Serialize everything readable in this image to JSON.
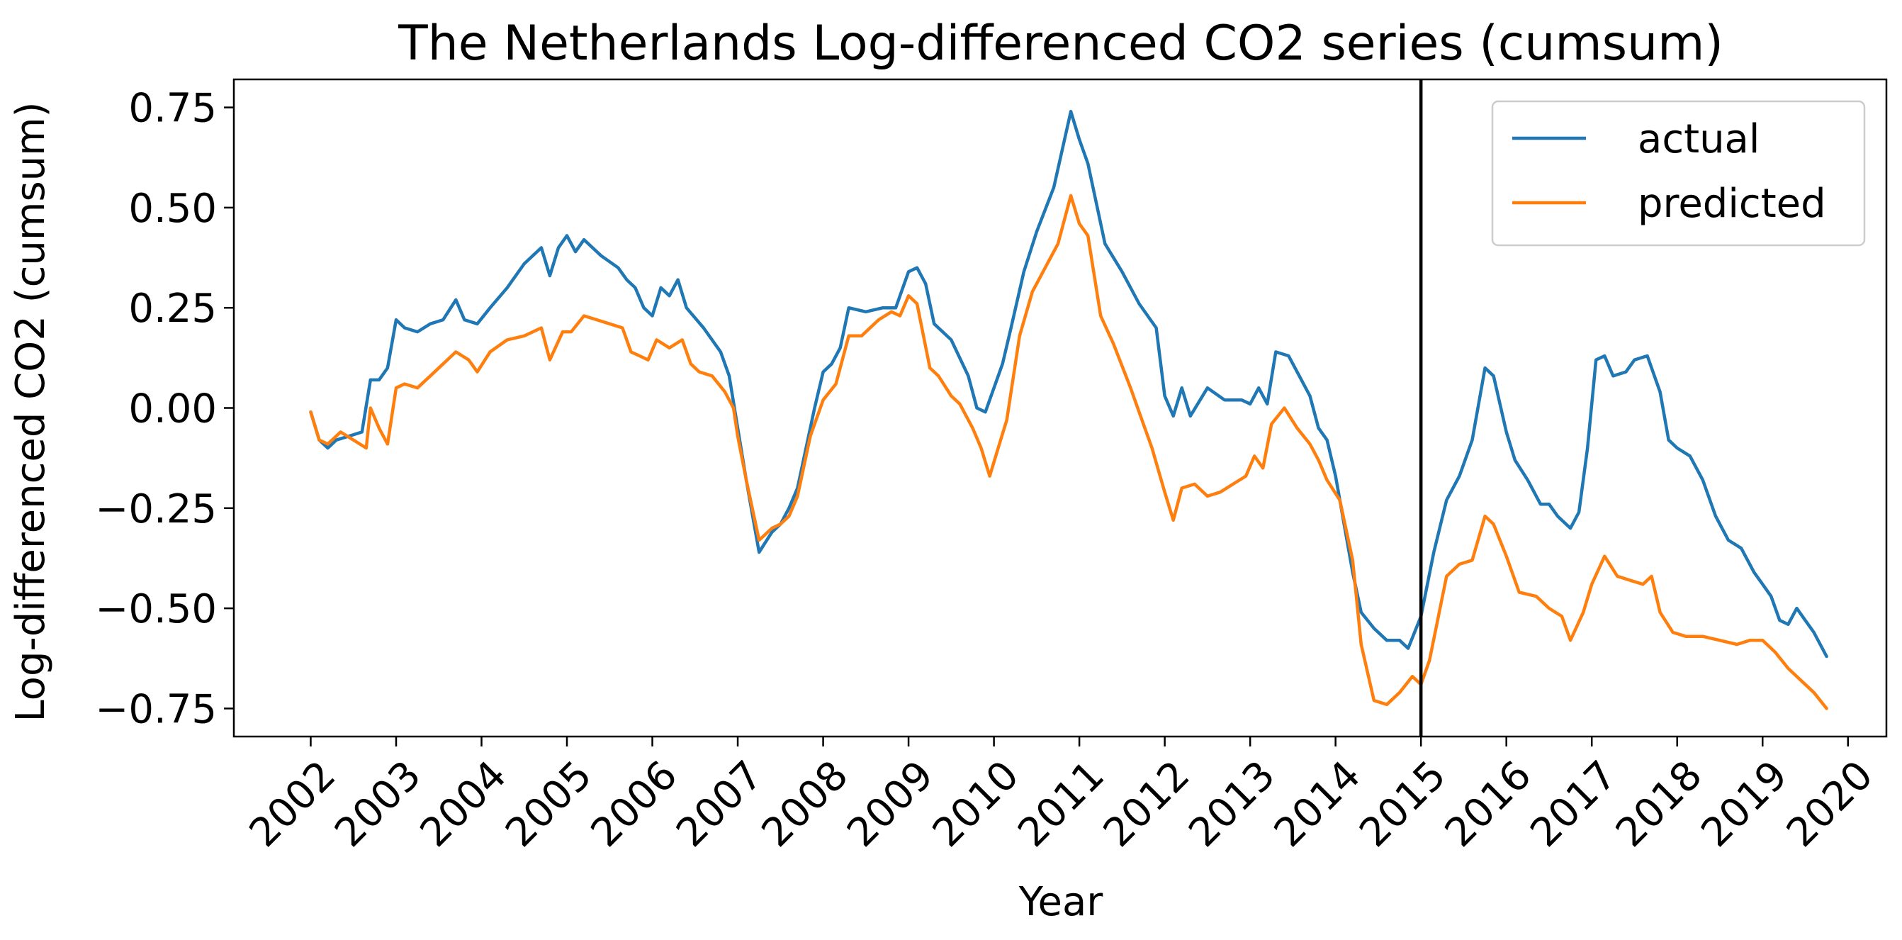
{
  "chart_data": {
    "type": "line",
    "title": "The Netherlands Log-differenced CO2 series (cumsum)",
    "xlabel": "Year",
    "ylabel": "Log-differenced CO2 (cumsum)",
    "xlim": [
      2001.1,
      2020.45
    ],
    "ylim": [
      -0.82,
      0.82
    ],
    "xticks": [
      2002,
      2003,
      2004,
      2005,
      2006,
      2007,
      2008,
      2009,
      2010,
      2011,
      2012,
      2013,
      2014,
      2015,
      2016,
      2017,
      2018,
      2019,
      2020
    ],
    "xtick_labels": [
      "2002",
      "2003",
      "2004",
      "2005",
      "2006",
      "2007",
      "2008",
      "2009",
      "2010",
      "2011",
      "2012",
      "2013",
      "2014",
      "2015",
      "2016",
      "2017",
      "2018",
      "2019",
      "2020"
    ],
    "yticks": [
      -0.75,
      -0.5,
      -0.25,
      0.0,
      0.25,
      0.5,
      0.75
    ],
    "ytick_labels": [
      "−0.75",
      "−0.50",
      "−0.25",
      "0.00",
      "0.25",
      "0.50",
      "0.75"
    ],
    "vline_x": 2015.0,
    "grid": false,
    "legend_position": "top-right",
    "series": [
      {
        "name": "actual",
        "color": "#1f77b4",
        "x": [
          2002.0,
          2002.1,
          2002.2,
          2002.3,
          2002.45,
          2002.6,
          2002.7,
          2002.8,
          2002.9,
          2003.0,
          2003.1,
          2003.25,
          2003.4,
          2003.55,
          2003.7,
          2003.8,
          2003.95,
          2004.1,
          2004.3,
          2004.5,
          2004.7,
          2004.8,
          2004.9,
          2005.0,
          2005.1,
          2005.2,
          2005.4,
          2005.6,
          2005.7,
          2005.8,
          2005.9,
          2006.0,
          2006.1,
          2006.2,
          2006.3,
          2006.4,
          2006.6,
          2006.8,
          2006.9,
          2007.0,
          2007.1,
          2007.25,
          2007.4,
          2007.5,
          2007.6,
          2007.7,
          2007.9,
          2008.0,
          2008.1,
          2008.2,
          2008.3,
          2008.5,
          2008.7,
          2008.85,
          2009.0,
          2009.1,
          2009.2,
          2009.3,
          2009.5,
          2009.7,
          2009.8,
          2009.9,
          2010.0,
          2010.1,
          2010.2,
          2010.35,
          2010.5,
          2010.7,
          2010.9,
          2011.0,
          2011.1,
          2011.3,
          2011.5,
          2011.7,
          2011.9,
          2012.0,
          2012.1,
          2012.2,
          2012.3,
          2012.5,
          2012.7,
          2012.9,
          2013.0,
          2013.1,
          2013.2,
          2013.3,
          2013.45,
          2013.6,
          2013.7,
          2013.8,
          2013.9,
          2014.0,
          2014.1,
          2014.2,
          2014.3,
          2014.45,
          2014.6,
          2014.75,
          2014.85,
          2015.0,
          2015.15,
          2015.3,
          2015.45,
          2015.6,
          2015.75,
          2015.85,
          2016.0,
          2016.1,
          2016.25,
          2016.4,
          2016.5,
          2016.6,
          2016.75,
          2016.85,
          2016.95,
          2017.05,
          2017.15,
          2017.25,
          2017.4,
          2017.5,
          2017.65,
          2017.8,
          2017.9,
          2018.0,
          2018.15,
          2018.3,
          2018.45,
          2018.6,
          2018.75,
          2018.9,
          2019.0,
          2019.1,
          2019.2,
          2019.3,
          2019.4,
          2019.5,
          2019.6,
          2019.75
        ],
        "values": [
          -0.01,
          -0.08,
          -0.1,
          -0.08,
          -0.07,
          -0.06,
          0.07,
          0.07,
          0.1,
          0.22,
          0.2,
          0.19,
          0.21,
          0.22,
          0.27,
          0.22,
          0.21,
          0.25,
          0.3,
          0.36,
          0.4,
          0.33,
          0.4,
          0.43,
          0.39,
          0.42,
          0.38,
          0.35,
          0.32,
          0.3,
          0.25,
          0.23,
          0.3,
          0.28,
          0.32,
          0.25,
          0.2,
          0.14,
          0.08,
          -0.05,
          -0.18,
          -0.36,
          -0.31,
          -0.29,
          -0.25,
          -0.2,
          0.0,
          0.09,
          0.11,
          0.15,
          0.25,
          0.24,
          0.25,
          0.25,
          0.34,
          0.35,
          0.31,
          0.21,
          0.17,
          0.08,
          0.0,
          -0.01,
          0.05,
          0.11,
          0.2,
          0.34,
          0.44,
          0.55,
          0.74,
          0.67,
          0.61,
          0.41,
          0.34,
          0.26,
          0.2,
          0.03,
          -0.02,
          0.05,
          -0.02,
          0.05,
          0.02,
          0.02,
          0.01,
          0.05,
          0.01,
          0.14,
          0.13,
          0.07,
          0.03,
          -0.05,
          -0.08,
          -0.17,
          -0.29,
          -0.41,
          -0.51,
          -0.55,
          -0.58,
          -0.58,
          -0.6,
          -0.52,
          -0.36,
          -0.23,
          -0.17,
          -0.08,
          0.1,
          0.08,
          -0.06,
          -0.13,
          -0.18,
          -0.24,
          -0.24,
          -0.27,
          -0.3,
          -0.26,
          -0.1,
          0.12,
          0.13,
          0.08,
          0.09,
          0.12,
          0.13,
          0.04,
          -0.08,
          -0.1,
          -0.12,
          -0.18,
          -0.27,
          -0.33,
          -0.35,
          -0.41,
          -0.44,
          -0.47,
          -0.53,
          -0.54,
          -0.5,
          -0.53,
          -0.56,
          -0.62
        ]
      },
      {
        "name": "predicted",
        "color": "#ff7f0e",
        "x": [
          2002.0,
          2002.1,
          2002.2,
          2002.35,
          2002.5,
          2002.65,
          2002.7,
          2002.8,
          2002.9,
          2003.0,
          2003.1,
          2003.25,
          2003.4,
          2003.55,
          2003.7,
          2003.85,
          2003.95,
          2004.1,
          2004.3,
          2004.5,
          2004.7,
          2004.8,
          2004.95,
          2005.05,
          2005.2,
          2005.35,
          2005.5,
          2005.65,
          2005.75,
          2005.85,
          2005.95,
          2006.05,
          2006.2,
          2006.35,
          2006.45,
          2006.55,
          2006.7,
          2006.85,
          2006.95,
          2007.0,
          2007.1,
          2007.25,
          2007.4,
          2007.5,
          2007.6,
          2007.7,
          2007.85,
          2008.0,
          2008.15,
          2008.3,
          2008.45,
          2008.65,
          2008.8,
          2008.9,
          2009.0,
          2009.1,
          2009.25,
          2009.35,
          2009.5,
          2009.6,
          2009.75,
          2009.85,
          2009.95,
          2010.05,
          2010.15,
          2010.3,
          2010.45,
          2010.6,
          2010.75,
          2010.9,
          2011.0,
          2011.1,
          2011.25,
          2011.4,
          2011.6,
          2011.75,
          2011.85,
          2012.0,
          2012.1,
          2012.2,
          2012.35,
          2012.5,
          2012.65,
          2012.8,
          2012.95,
          2013.05,
          2013.15,
          2013.25,
          2013.4,
          2013.55,
          2013.7,
          2013.8,
          2013.9,
          2014.05,
          2014.2,
          2014.3,
          2014.45,
          2014.6,
          2014.75,
          2014.9,
          2015.0,
          2015.1,
          2015.3,
          2015.45,
          2015.6,
          2015.75,
          2015.85,
          2016.0,
          2016.15,
          2016.35,
          2016.5,
          2016.65,
          2016.75,
          2016.9,
          2017.0,
          2017.15,
          2017.3,
          2017.45,
          2017.6,
          2017.7,
          2017.8,
          2017.95,
          2018.1,
          2018.3,
          2018.5,
          2018.7,
          2018.85,
          2019.0,
          2019.15,
          2019.3,
          2019.45,
          2019.6,
          2019.75
        ],
        "values": [
          -0.01,
          -0.08,
          -0.09,
          -0.06,
          -0.08,
          -0.1,
          0.0,
          -0.05,
          -0.09,
          0.05,
          0.06,
          0.05,
          0.08,
          0.11,
          0.14,
          0.12,
          0.09,
          0.14,
          0.17,
          0.18,
          0.2,
          0.12,
          0.19,
          0.19,
          0.23,
          0.22,
          0.21,
          0.2,
          0.14,
          0.13,
          0.12,
          0.17,
          0.15,
          0.17,
          0.11,
          0.09,
          0.08,
          0.04,
          0.0,
          -0.07,
          -0.18,
          -0.33,
          -0.3,
          -0.29,
          -0.27,
          -0.22,
          -0.07,
          0.02,
          0.06,
          0.18,
          0.18,
          0.22,
          0.24,
          0.23,
          0.28,
          0.26,
          0.1,
          0.08,
          0.03,
          0.01,
          -0.05,
          -0.1,
          -0.17,
          -0.1,
          -0.03,
          0.18,
          0.29,
          0.35,
          0.41,
          0.53,
          0.46,
          0.43,
          0.23,
          0.16,
          0.05,
          -0.04,
          -0.1,
          -0.21,
          -0.28,
          -0.2,
          -0.19,
          -0.22,
          -0.21,
          -0.19,
          -0.17,
          -0.12,
          -0.15,
          -0.04,
          0.0,
          -0.05,
          -0.09,
          -0.13,
          -0.18,
          -0.23,
          -0.38,
          -0.59,
          -0.73,
          -0.74,
          -0.71,
          -0.67,
          -0.69,
          -0.63,
          -0.42,
          -0.39,
          -0.38,
          -0.27,
          -0.29,
          -0.37,
          -0.46,
          -0.47,
          -0.5,
          -0.52,
          -0.58,
          -0.51,
          -0.44,
          -0.37,
          -0.42,
          -0.43,
          -0.44,
          -0.42,
          -0.51,
          -0.56,
          -0.57,
          -0.57,
          -0.58,
          -0.59,
          -0.58,
          -0.58,
          -0.61,
          -0.65,
          -0.68,
          -0.71,
          -0.75
        ]
      }
    ]
  }
}
